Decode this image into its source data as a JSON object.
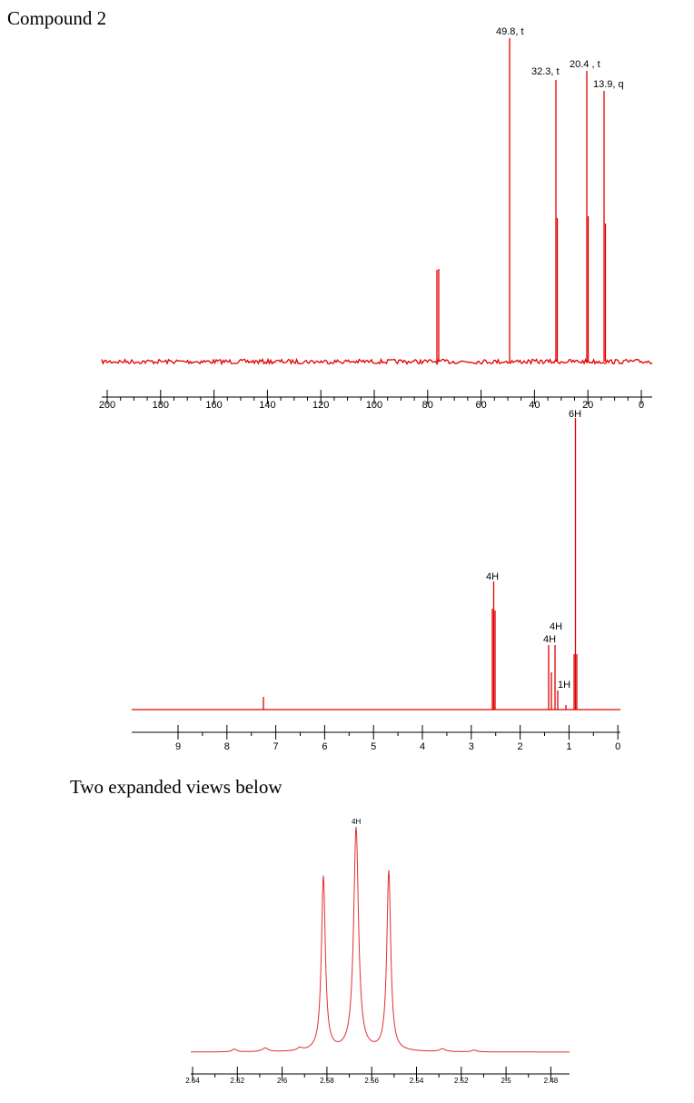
{
  "title": "Compound 2",
  "carbon_spectrum": {
    "peak_labels": [
      "49.8, t",
      "32.3, t",
      "20.4 , t",
      "13.9, q"
    ],
    "xticks": [
      "200",
      "180",
      "160",
      "140",
      "120",
      "100",
      "80",
      "60",
      "40",
      "20",
      "0"
    ]
  },
  "proton_spectrum": {
    "integrals": [
      "6H",
      "4H",
      "4H",
      "4H",
      "1H"
    ],
    "xticks": [
      "9",
      "8",
      "7",
      "6",
      "5",
      "4",
      "3",
      "2",
      "1",
      "0"
    ]
  },
  "caption": "Two expanded views below",
  "expanded_spectrum": {
    "integrals": [
      "4H"
    ],
    "xticks": [
      "2.64",
      "2.62",
      "2.6",
      "2.58",
      "2.56",
      "2.54",
      "2.52",
      "2.5",
      "2.48"
    ]
  }
}
